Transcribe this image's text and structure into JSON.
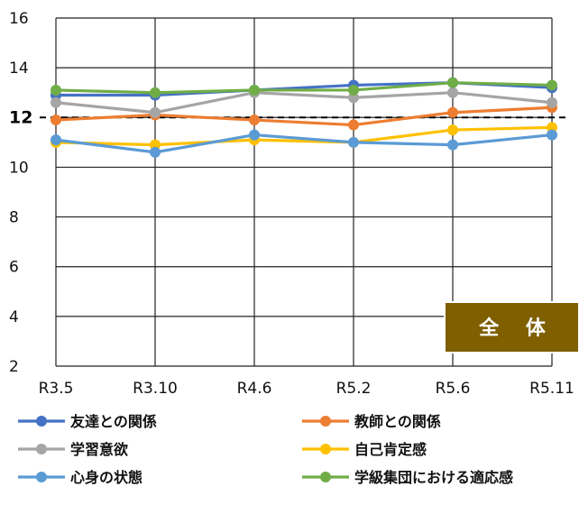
{
  "chart_data": {
    "type": "line",
    "title": "",
    "xlabel": "",
    "ylabel": "",
    "categories": [
      "R3.5",
      "R3.10",
      "R4.6",
      "R5.2",
      "R5.6",
      "R5.11"
    ],
    "ylim": [
      2,
      16
    ],
    "yticks": [
      2,
      4,
      6,
      8,
      10,
      12,
      14,
      16
    ],
    "highlight_tick": 12,
    "reference_line": 12,
    "grid": true,
    "legend_position": "bottom",
    "badge": "全 体",
    "series": [
      {
        "name": "友達との関係",
        "color": "#4472C4",
        "values": [
          12.9,
          12.9,
          13.1,
          13.3,
          13.4,
          13.2
        ]
      },
      {
        "name": "教師との関係",
        "color": "#ED7D31",
        "values": [
          11.9,
          12.1,
          11.9,
          11.7,
          12.2,
          12.4
        ]
      },
      {
        "name": "学習意欲",
        "color": "#A5A5A5",
        "values": [
          12.6,
          12.2,
          13.0,
          12.8,
          13.0,
          12.6
        ]
      },
      {
        "name": "自己肯定感",
        "color": "#FFC000",
        "values": [
          11.0,
          10.9,
          11.1,
          11.0,
          11.5,
          11.6
        ]
      },
      {
        "name": "心身の状態",
        "color": "#5B9BD5",
        "values": [
          11.1,
          10.6,
          11.3,
          11.0,
          10.9,
          11.3
        ]
      },
      {
        "name": "学級集団における適応感",
        "color": "#70AD47",
        "values": [
          13.1,
          13.0,
          13.1,
          13.1,
          13.4,
          13.3
        ]
      }
    ]
  }
}
